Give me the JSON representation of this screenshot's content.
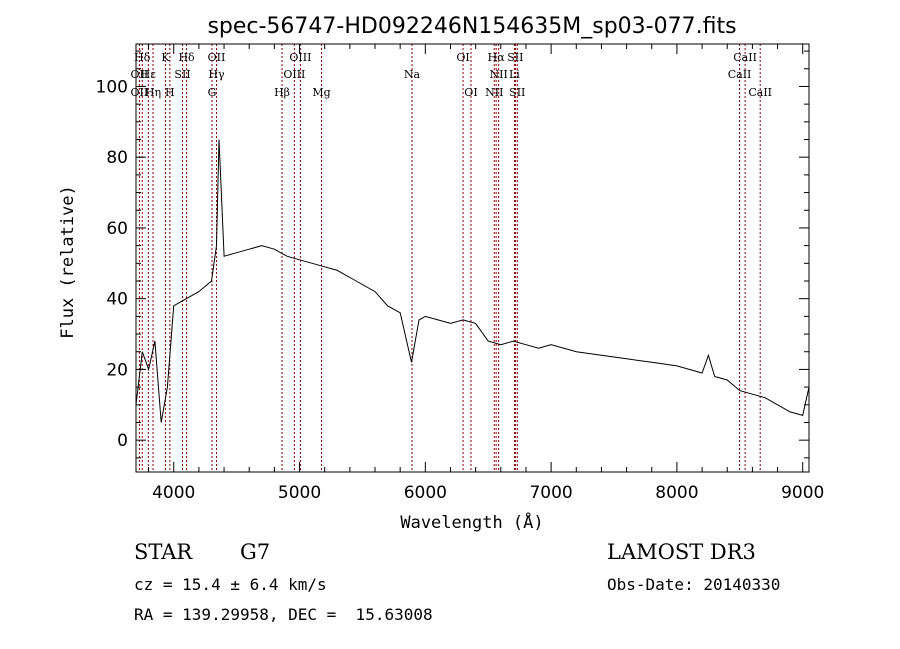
{
  "chart_data": {
    "type": "line",
    "title": "spec-56747-HD092246N154635M_sp03-077.fits",
    "xlabel": "Wavelength (Å)",
    "ylabel": "Flux (relative)",
    "xlim": [
      3700,
      9050
    ],
    "ylim": [
      -9,
      112
    ],
    "x_ticks": [
      4000,
      5000,
      6000,
      7000,
      8000,
      9000
    ],
    "y_ticks": [
      0,
      20,
      40,
      60,
      80,
      100
    ],
    "grid": false,
    "series": [
      {
        "color": "#000000",
        "x": [
          3700,
          3750,
          3800,
          3850,
          3900,
          3950,
          4000,
          4100,
          4200,
          4300,
          4340,
          4360,
          4400,
          4500,
          4600,
          4700,
          4800,
          4900,
          5000,
          5100,
          5200,
          5300,
          5400,
          5500,
          5600,
          5700,
          5800,
          5890,
          5950,
          6000,
          6100,
          6200,
          6300,
          6400,
          6500,
          6600,
          6700,
          6800,
          6900,
          7000,
          7200,
          7400,
          7600,
          7800,
          8000,
          8200,
          8250,
          8300,
          8400,
          8500,
          8600,
          8700,
          8800,
          8900,
          9000,
          9050
        ],
        "y": [
          10,
          25,
          20,
          28,
          5,
          15,
          38,
          40,
          42,
          45,
          55,
          85,
          52,
          53,
          54,
          55,
          54,
          52,
          51,
          50,
          49,
          48,
          46,
          44,
          42,
          38,
          36,
          22,
          34,
          35,
          34,
          33,
          34,
          33,
          28,
          27,
          28,
          27,
          26,
          27,
          25,
          24,
          23,
          22,
          21,
          19,
          24,
          18,
          17,
          14,
          13,
          12,
          10,
          8,
          7,
          15
        ]
      }
    ],
    "spectral_lines": [
      {
        "label": "Hδ",
        "x": 3750,
        "row": 0
      },
      {
        "label": "OII",
        "x": 3727,
        "row": 1
      },
      {
        "label": "OII",
        "x": 3727,
        "row": 2
      },
      {
        "label": "Hε",
        "x": 3798,
        "row": 1
      },
      {
        "label": "Hη",
        "x": 3835,
        "row": 2
      },
      {
        "label": "K",
        "x": 3934,
        "row": 0
      },
      {
        "label": "SII",
        "x": 4070,
        "row": 1
      },
      {
        "label": "H",
        "x": 3969,
        "row": 2
      },
      {
        "label": "Hδ",
        "x": 4102,
        "row": 0
      },
      {
        "label": "OII",
        "x": 4340,
        "row": 0
      },
      {
        "label": "Hγ",
        "x": 4340,
        "row": 1
      },
      {
        "label": "G",
        "x": 4304,
        "row": 2
      },
      {
        "label": "OIII",
        "x": 5007,
        "row": 0
      },
      {
        "label": "OIII",
        "x": 4959,
        "row": 1
      },
      {
        "label": "Hβ",
        "x": 4861,
        "row": 2
      },
      {
        "label": "Mg",
        "x": 5175,
        "row": 2
      },
      {
        "label": "Na",
        "x": 5894,
        "row": 1
      },
      {
        "label": "OI",
        "x": 6300,
        "row": 0
      },
      {
        "label": "OI",
        "x": 6363,
        "row": 2
      },
      {
        "label": "Hα",
        "x": 6563,
        "row": 0
      },
      {
        "label": "SII",
        "x": 6716,
        "row": 0
      },
      {
        "label": "NII",
        "x": 6583,
        "row": 1
      },
      {
        "label": "Li",
        "x": 6708,
        "row": 1
      },
      {
        "label": "NII",
        "x": 6548,
        "row": 2
      },
      {
        "label": "SII",
        "x": 6731,
        "row": 2
      },
      {
        "label": "CaII",
        "x": 8542,
        "row": 0
      },
      {
        "label": "CaII",
        "x": 8498,
        "row": 1
      },
      {
        "label": "CaII",
        "x": 8662,
        "row": 2
      }
    ],
    "line_marker_color": "#8b0000"
  },
  "info": {
    "object_class": "STAR",
    "subclass": "G7",
    "survey": "LAMOST DR3",
    "redshift": "cz = 15.4 ± 6.4 km/s",
    "obs_date": "Obs-Date: 20140330",
    "coords": "RA = 139.29958, DEC =  15.63008"
  }
}
